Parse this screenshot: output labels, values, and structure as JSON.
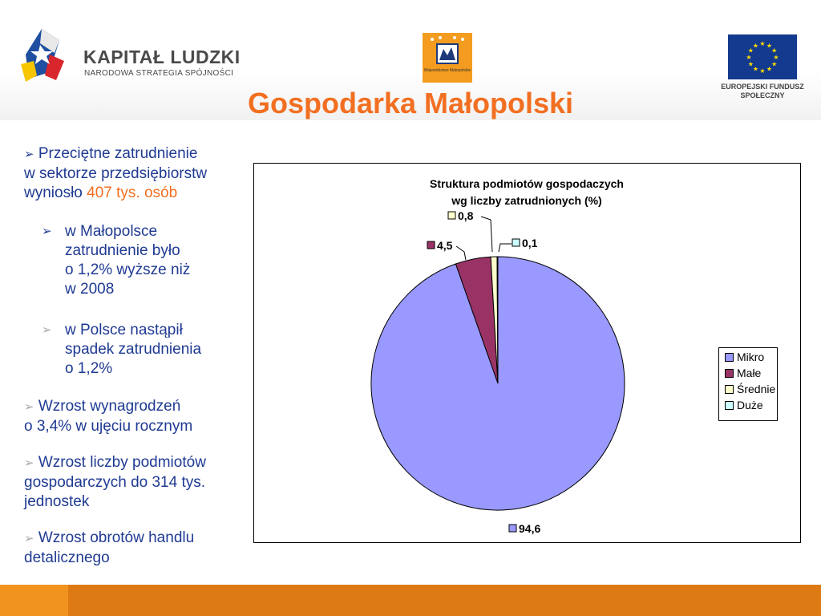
{
  "header": {
    "kl_title": "KAPITAŁ LUDZKI",
    "kl_subtitle": "NARODOWA STRATEGIA SPÓJNOŚCI",
    "wm_text": "Województwo Małopolskie",
    "eu_text_line1": "EUROPEJSKI FUNDUSZ",
    "eu_text_line2": "SPOŁECZNY"
  },
  "page_title": "Gospodarka Małopolski",
  "bullets": {
    "b1_line1": "Przeciętne zatrudnienie",
    "b1_line2": "w sektorze przedsiębiorstw",
    "b1_line3_prefix": "wyniosło ",
    "b1_line3_highlight": "407 tys. osób",
    "b2_line1": "w Małopolsce",
    "b2_line2": "zatrudnienie było",
    "b2_line3": "o 1,2% wyższe niż",
    "b2_line4": "w 2008",
    "b3_line1": "w Polsce nastąpił",
    "b3_line2": "spadek zatrudnienia",
    "b3_line3": "o 1,2%",
    "b4_line1": "Wzrost wynagrodzeń",
    "b4_line2": "o 3,4% w ujęciu rocznym",
    "b5_line1": "Wzrost liczby podmiotów",
    "b5_line2": "gospodarczych do 314 tys.",
    "b5_line3": "jednostek",
    "b6_line1": "Wzrost obrotów handlu",
    "b6_line2": "detalicznego"
  },
  "colors": {
    "accent": "#f26f21",
    "text_blue": "#1f3a93",
    "footer": "#de7a14"
  },
  "chart_data": {
    "type": "pie",
    "title_line1": "Struktura podmiotów gospodaczych",
    "title_line2": "wg liczby zatrudnionych (%)",
    "legend_position": "right",
    "slices": [
      {
        "name": "Mikro",
        "value": 94.6,
        "label": "94,6",
        "color": "#9999ff"
      },
      {
        "name": "Małe",
        "value": 4.5,
        "label": "4,5",
        "color": "#993366"
      },
      {
        "name": "Średnie",
        "value": 0.8,
        "label": "0,8",
        "color": "#ffffcc"
      },
      {
        "name": "Duże",
        "value": 0.1,
        "label": "0,1",
        "color": "#ccffff"
      }
    ]
  }
}
